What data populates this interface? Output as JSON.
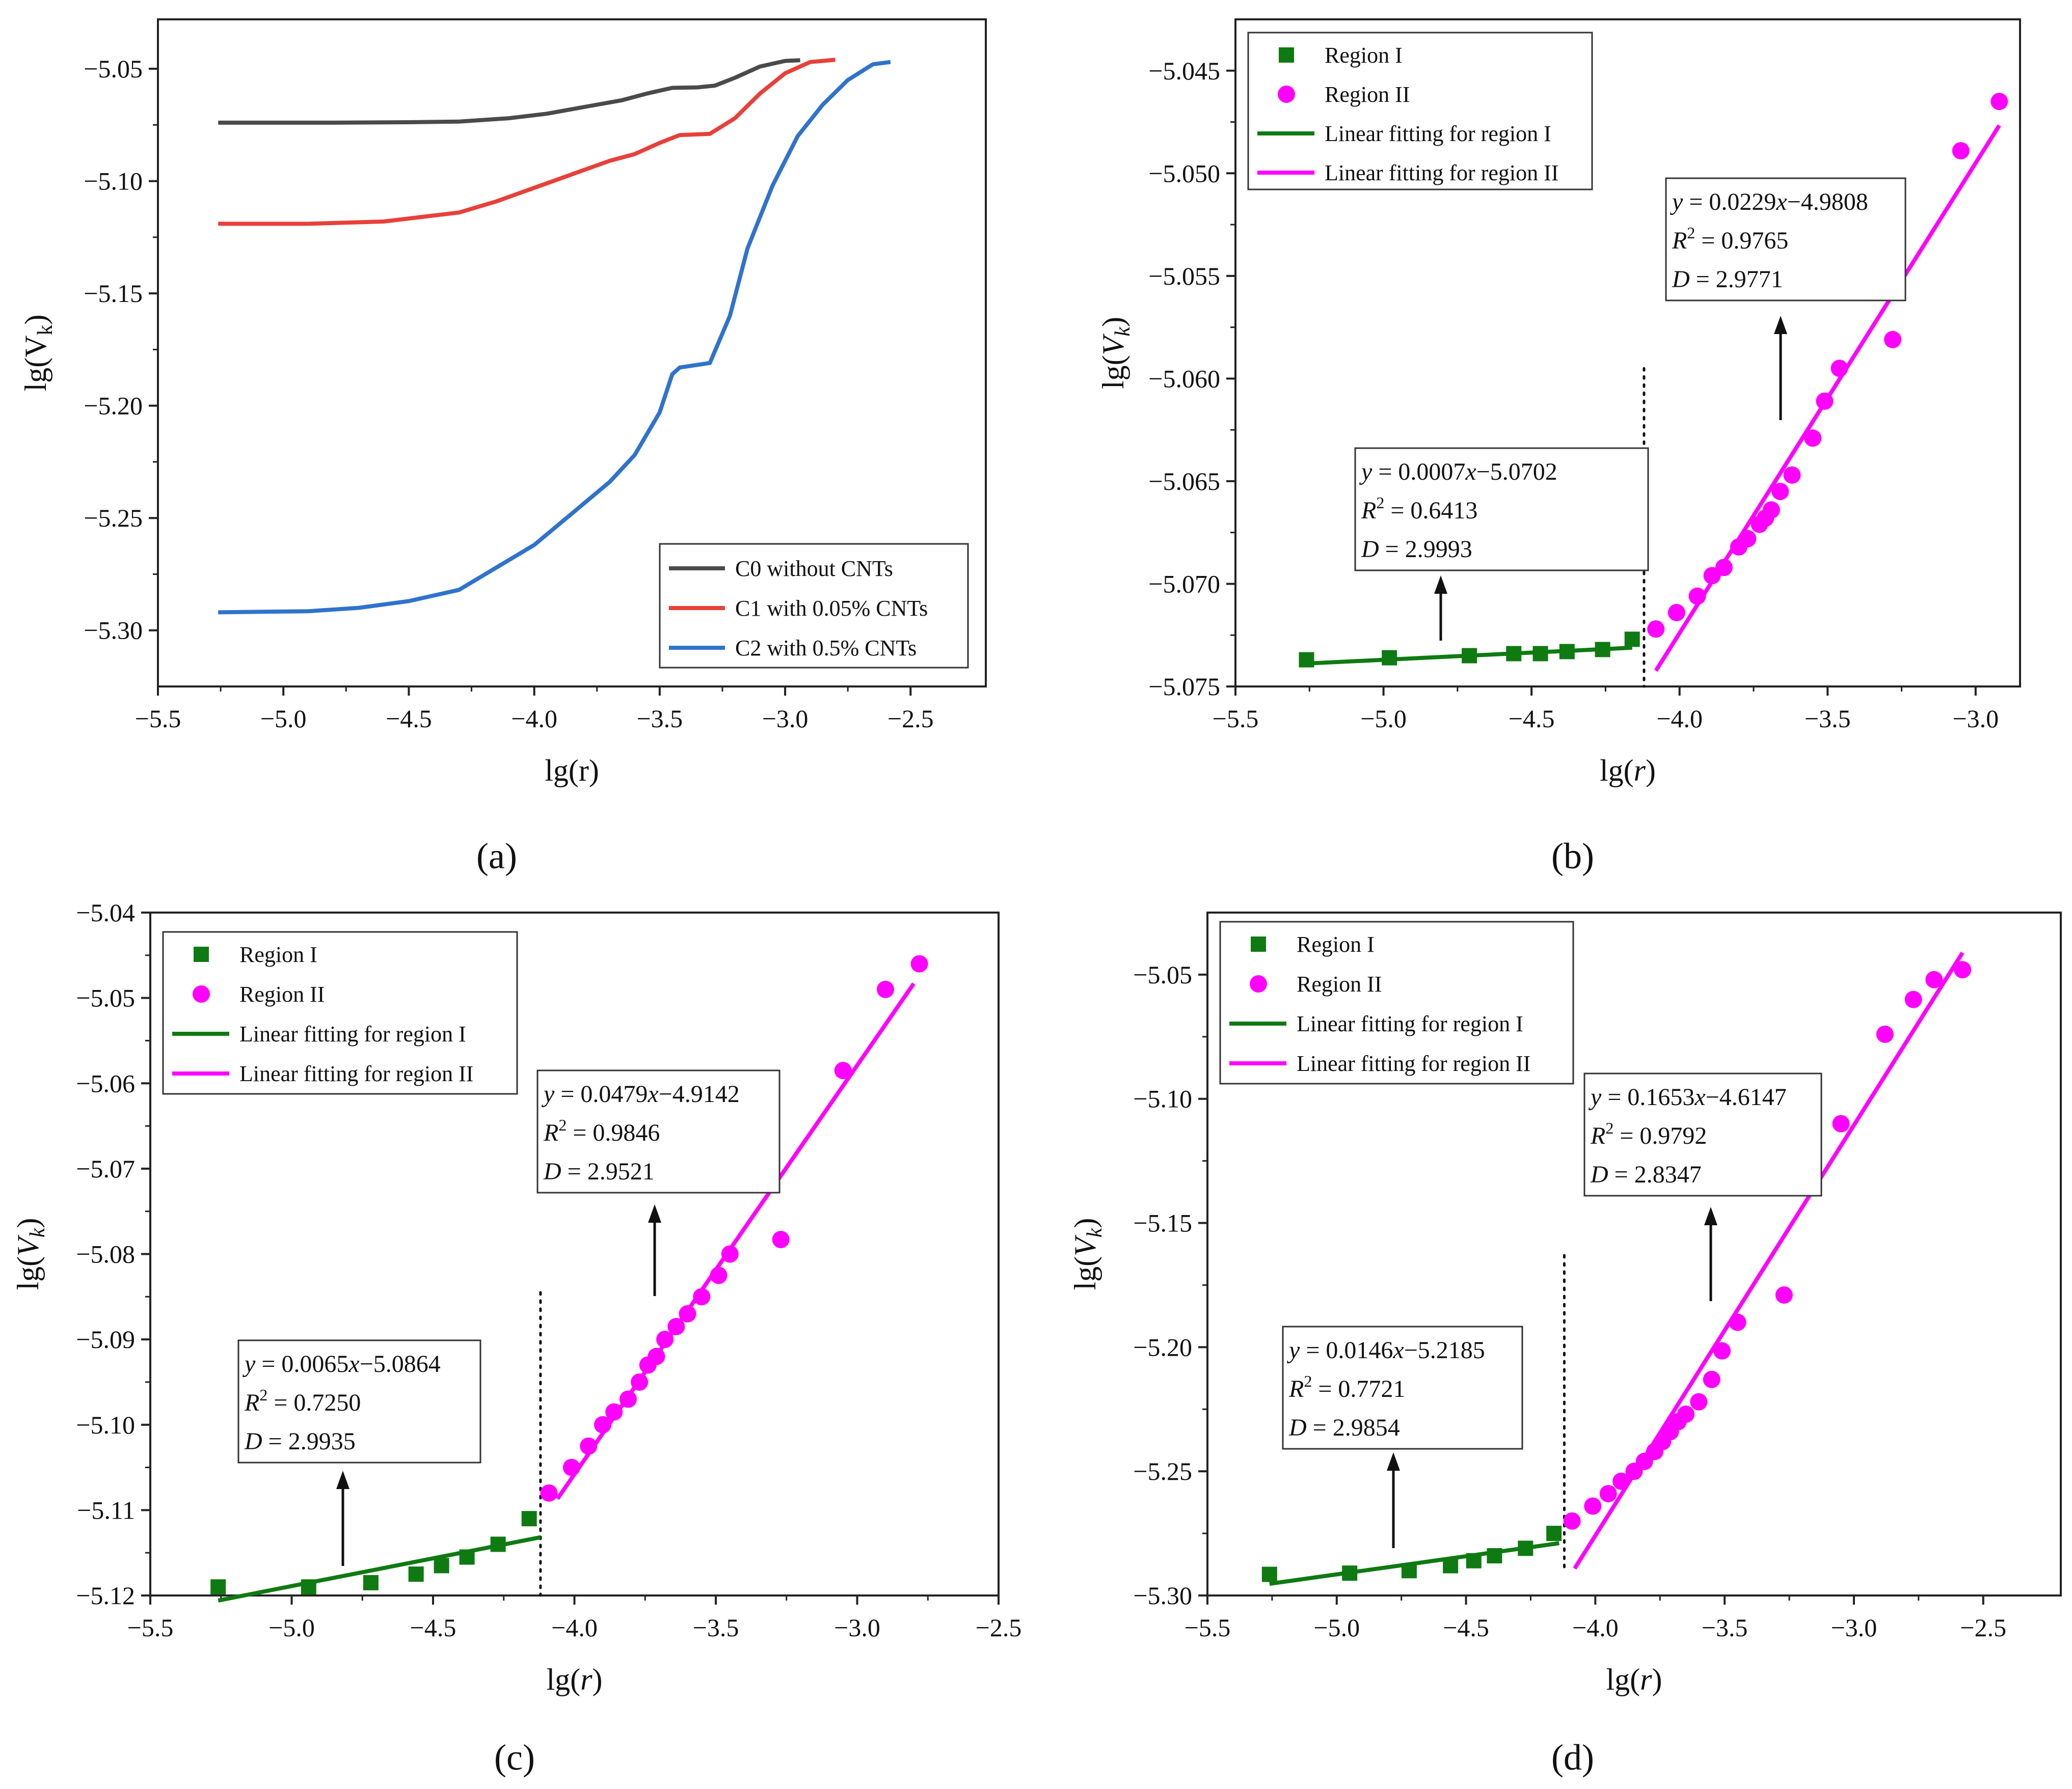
{
  "chart_data": [
    {
      "panel": "(a)",
      "panel_letter": "a",
      "type": "line",
      "xlabel": "lg(r)",
      "ylabel": "lg(V",
      "ylabel_sub": "k",
      "ylabel_close": ")",
      "ylabel_italic": false,
      "xlim": [
        -5.5,
        -2.2
      ],
      "ylim": [
        -5.325,
        -5.028
      ],
      "xticks": [
        -5.5,
        -5.0,
        -4.5,
        -4.0,
        -3.5,
        -3.0,
        -2.5
      ],
      "xtick_labels": [
        "−5.5",
        "−5.0",
        "−4.5",
        "−4.0",
        "−3.5",
        "−3.0",
        "−2.5"
      ],
      "yticks": [
        -5.3,
        -5.25,
        -5.2,
        -5.15,
        -5.1,
        -5.05
      ],
      "ytick_labels": [
        "−5.30",
        "−5.25",
        "−5.20",
        "−5.15",
        "−5.10",
        "−5.05"
      ],
      "legend_position": "bottom-right",
      "series": [
        {
          "name": "C0 without CNTs",
          "color": "#4a4a4a",
          "x": [
            -5.26,
            -4.8,
            -4.5,
            -4.3,
            -4.1,
            -3.95,
            -3.8,
            -3.65,
            -3.55,
            -3.45,
            -3.35,
            -3.28,
            -3.2,
            -3.1,
            -3.0,
            -2.94
          ],
          "y": [
            -5.074,
            -5.074,
            -5.0738,
            -5.0735,
            -5.072,
            -5.07,
            -5.067,
            -5.064,
            -5.061,
            -5.0585,
            -5.0583,
            -5.0575,
            -5.054,
            -5.049,
            -5.0465,
            -5.0462
          ]
        },
        {
          "name": "C1 with 0.05% CNTs",
          "color": "#e8403a",
          "x": [
            -5.26,
            -4.9,
            -4.6,
            -4.45,
            -4.3,
            -4.15,
            -4.0,
            -3.9,
            -3.8,
            -3.7,
            -3.6,
            -3.5,
            -3.42,
            -3.3,
            -3.2,
            -3.1,
            -3.0,
            -2.9,
            -2.8
          ],
          "y": [
            -5.119,
            -5.119,
            -5.118,
            -5.116,
            -5.114,
            -5.109,
            -5.103,
            -5.099,
            -5.095,
            -5.091,
            -5.088,
            -5.083,
            -5.0795,
            -5.079,
            -5.072,
            -5.061,
            -5.052,
            -5.047,
            -5.046
          ]
        },
        {
          "name": "C2 with 0.5% CNTs",
          "color": "#2f73cc",
          "x": [
            -5.26,
            -4.9,
            -4.7,
            -4.5,
            -4.3,
            -4.15,
            -4.0,
            -3.85,
            -3.7,
            -3.6,
            -3.5,
            -3.45,
            -3.42,
            -3.3,
            -3.22,
            -3.15,
            -3.05,
            -2.95,
            -2.85,
            -2.75,
            -2.65,
            -2.58
          ],
          "y": [
            -5.292,
            -5.2915,
            -5.29,
            -5.287,
            -5.282,
            -5.272,
            -5.262,
            -5.248,
            -5.234,
            -5.222,
            -5.203,
            -5.186,
            -5.183,
            -5.181,
            -5.16,
            -5.13,
            -5.102,
            -5.08,
            -5.066,
            -5.055,
            -5.048,
            -5.047
          ]
        }
      ]
    },
    {
      "panel": "(b)",
      "panel_letter": "b",
      "type": "scatter",
      "xlabel_pre": "lg(",
      "xlabel_var": "r",
      "xlabel_post": ")",
      "ylabel": "lg(",
      "ylabel_var": "V",
      "ylabel_sub": "k",
      "ylabel_close": ")",
      "ylabel_italic": true,
      "xlim": [
        -5.5,
        -2.85
      ],
      "ylim": [
        -5.075,
        -5.0425
      ],
      "xticks": [
        -5.5,
        -5.0,
        -4.5,
        -4.0,
        -3.5,
        -3.0
      ],
      "xtick_labels": [
        "−5.5",
        "−5.0",
        "−4.5",
        "−4.0",
        "−3.5",
        "−3.0"
      ],
      "yticks": [
        -5.075,
        -5.07,
        -5.065,
        -5.06,
        -5.055,
        -5.05,
        -5.045
      ],
      "ytick_labels": [
        "−5.075",
        "−5.070",
        "−5.065",
        "−5.060",
        "−5.055",
        "−5.050",
        "−5.045"
      ],
      "legend_position": "top-left",
      "legend": [
        "Region I",
        "Region II",
        "Linear fitting for region I",
        "Linear fitting for region II"
      ],
      "region1": {
        "color": "#0f7a12",
        "x": [
          -5.26,
          -4.98,
          -4.71,
          -4.56,
          -4.47,
          -4.38,
          -4.26,
          -4.16
        ],
        "y": [
          -5.0737,
          -5.0736,
          -5.0735,
          -5.0734,
          -5.0734,
          -5.0733,
          -5.0732,
          -5.0727
        ]
      },
      "region2": {
        "color": "#ff00ff",
        "x": [
          -4.08,
          -4.01,
          -3.94,
          -3.89,
          -3.85,
          -3.8,
          -3.77,
          -3.73,
          -3.71,
          -3.69,
          -3.66,
          -3.62,
          -3.55,
          -3.51,
          -3.46,
          -3.28,
          -3.05,
          -2.92
        ],
        "y": [
          -5.0722,
          -5.0714,
          -5.0706,
          -5.0696,
          -5.0692,
          -5.0682,
          -5.0678,
          -5.0671,
          -5.0668,
          -5.0664,
          -5.0655,
          -5.0647,
          -5.0629,
          -5.0611,
          -5.0595,
          -5.0581,
          -5.0489,
          -5.0465
        ]
      },
      "fit1": {
        "x": [
          -5.26,
          -4.16
        ],
        "slope": 0.0007,
        "intercept": -5.0702
      },
      "fit2": {
        "x": [
          -4.08,
          -2.92
        ],
        "slope": 0.0229,
        "intercept": -4.9808
      },
      "divider_x": -4.12,
      "divider_y": [
        -5.075,
        -5.0595
      ],
      "ann1": {
        "eq_y": "y",
        "eq_mid": " = 0.0007",
        "eq_x": "x",
        "eq_tail": "−5.0702",
        "r2_r": "R",
        "r2_sup": "2",
        "r2_val": " = 0.6413",
        "d_var": "D",
        "d_val": " = 2.9993"
      },
      "ann2": {
        "eq_y": "y",
        "eq_mid": " = 0.0229",
        "eq_x": "x",
        "eq_tail": "−4.9808",
        "r2_r": "R",
        "r2_sup": "2",
        "r2_val": " = 0.9765",
        "d_var": "D",
        "d_val": " = 2.9771"
      }
    },
    {
      "panel": "(c)",
      "panel_letter": "c",
      "type": "scatter",
      "xlabel_pre": "lg(",
      "xlabel_var": "r",
      "xlabel_post": ")",
      "ylabel": "lg(",
      "ylabel_var": "V",
      "ylabel_sub": "k",
      "ylabel_close": ")",
      "ylabel_italic": true,
      "xlim": [
        -5.5,
        -2.5
      ],
      "ylim": [
        -5.12,
        -5.04
      ],
      "xticks": [
        -5.5,
        -5.0,
        -4.5,
        -4.0,
        -3.5,
        -3.0,
        -2.5
      ],
      "xtick_labels": [
        "−5.5",
        "−5.0",
        "−4.5",
        "−4.0",
        "−3.5",
        "−3.0",
        "−2.5"
      ],
      "yticks": [
        -5.12,
        -5.11,
        -5.1,
        -5.09,
        -5.08,
        -5.07,
        -5.06,
        -5.05,
        -5.04
      ],
      "ytick_labels": [
        "−5.12",
        "−5.11",
        "−5.10",
        "−5.09",
        "−5.08",
        "−5.07",
        "−5.06",
        "−5.05",
        "−5.04"
      ],
      "legend_position": "top-left",
      "legend": [
        "Region I",
        "Region II",
        "Linear fitting for region I",
        "Linear fitting for region II"
      ],
      "region1": {
        "color": "#0f7a12",
        "x": [
          -5.26,
          -4.94,
          -4.72,
          -4.56,
          -4.47,
          -4.38,
          -4.27,
          -4.16
        ],
        "y": [
          -5.119,
          -5.119,
          -5.1185,
          -5.1175,
          -5.1165,
          -5.1155,
          -5.114,
          -5.111
        ]
      },
      "region2": {
        "color": "#ff00ff",
        "x": [
          -4.09,
          -4.01,
          -3.95,
          -3.9,
          -3.86,
          -3.81,
          -3.77,
          -3.74,
          -3.71,
          -3.68,
          -3.64,
          -3.6,
          -3.55,
          -3.49,
          -3.45,
          -3.27,
          -3.05,
          -2.9,
          -2.78
        ],
        "y": [
          -5.108,
          -5.105,
          -5.1025,
          -5.1,
          -5.0985,
          -5.097,
          -5.095,
          -5.093,
          -5.092,
          -5.09,
          -5.0885,
          -5.087,
          -5.085,
          -5.0825,
          -5.08,
          -5.0783,
          -5.0585,
          -5.049,
          -5.046
        ]
      },
      "fit1": {
        "x": [
          -5.26,
          -4.12
        ],
        "slope": 0.0065,
        "intercept": -5.0864
      },
      "fit2": {
        "x": [
          -4.06,
          -2.8
        ],
        "slope": 0.0479,
        "intercept": -4.9142
      },
      "divider_x": -4.12,
      "divider_y": [
        -5.12,
        -5.0845
      ],
      "ann1": {
        "eq_y": "y",
        "eq_mid": " = 0.0065",
        "eq_x": "x",
        "eq_tail": "−5.0864",
        "r2_r": "R",
        "r2_sup": "2",
        "r2_val": " = 0.7250",
        "d_var": "D",
        "d_val": " = 2.9935"
      },
      "ann2": {
        "eq_y": "y",
        "eq_mid": " = 0.0479",
        "eq_x": "x",
        "eq_tail": "−4.9142",
        "r2_r": "R",
        "r2_sup": "2",
        "r2_val": " = 0.9846",
        "d_var": "D",
        "d_val": " = 2.9521"
      }
    },
    {
      "panel": "(d)",
      "panel_letter": "d",
      "type": "scatter",
      "xlabel_pre": "lg(",
      "xlabel_var": "r",
      "xlabel_post": ")",
      "ylabel": "lg(",
      "ylabel_var": "V",
      "ylabel_sub": "k",
      "ylabel_close": ")",
      "ylabel_italic": true,
      "xlim": [
        -5.5,
        -2.2
      ],
      "ylim": [
        -5.3,
        -5.025
      ],
      "xticks": [
        -5.5,
        -5.0,
        -4.5,
        -4.0,
        -3.5,
        -3.0,
        -2.5
      ],
      "xtick_labels": [
        "−5.5",
        "−5.0",
        "−4.5",
        "−4.0",
        "−3.5",
        "−3.0",
        "−2.5"
      ],
      "yticks": [
        -5.3,
        -5.25,
        -5.2,
        -5.15,
        -5.1,
        -5.05
      ],
      "ytick_labels": [
        "−5.30",
        "−5.25",
        "−5.20",
        "−5.15",
        "−5.10",
        "−5.05"
      ],
      "legend_position": "top-left",
      "legend": [
        "Region I",
        "Region II",
        "Linear fitting for region I",
        "Linear fitting for region II"
      ],
      "region1": {
        "color": "#0f7a12",
        "x": [
          -5.26,
          -4.95,
          -4.72,
          -4.56,
          -4.47,
          -4.39,
          -4.27,
          -4.16
        ],
        "y": [
          -5.2915,
          -5.291,
          -5.29,
          -5.288,
          -5.286,
          -5.284,
          -5.281,
          -5.275
        ]
      },
      "region2": {
        "color": "#ff00ff",
        "x": [
          -4.09,
          -4.01,
          -3.95,
          -3.9,
          -3.85,
          -3.81,
          -3.77,
          -3.74,
          -3.71,
          -3.68,
          -3.65,
          -3.6,
          -3.55,
          -3.51,
          -3.45,
          -3.27,
          -3.05,
          -2.88,
          -2.77,
          -2.69,
          -2.58
        ],
        "y": [
          -5.27,
          -5.264,
          -5.259,
          -5.254,
          -5.25,
          -5.246,
          -5.242,
          -5.238,
          -5.234,
          -5.23,
          -5.227,
          -5.222,
          -5.213,
          -5.2015,
          -5.19,
          -5.179,
          -5.11,
          -5.074,
          -5.06,
          -5.052,
          -5.048
        ]
      },
      "fit1": {
        "x": [
          -5.26,
          -4.14
        ],
        "slope": 0.0146,
        "intercept": -5.2185
      },
      "fit2": {
        "x": [
          -4.08,
          -2.58
        ],
        "slope": 0.1653,
        "intercept": -4.6147
      },
      "divider_x": -4.12,
      "divider_y": [
        -5.29,
        -5.163
      ],
      "ann1": {
        "eq_y": "y",
        "eq_mid": " = 0.0146",
        "eq_x": "x",
        "eq_tail": "−5.2185",
        "r2_r": "R",
        "r2_sup": "2",
        "r2_val": " = 0.7721",
        "d_var": "D",
        "d_val": " = 2.9854"
      },
      "ann2": {
        "eq_y": "y",
        "eq_mid": " = 0.1653",
        "eq_x": "x",
        "eq_tail": "−4.6147",
        "r2_r": "R",
        "r2_sup": "2",
        "r2_val": " = 0.9792",
        "d_var": "D",
        "d_val": " = 2.8347"
      }
    }
  ]
}
